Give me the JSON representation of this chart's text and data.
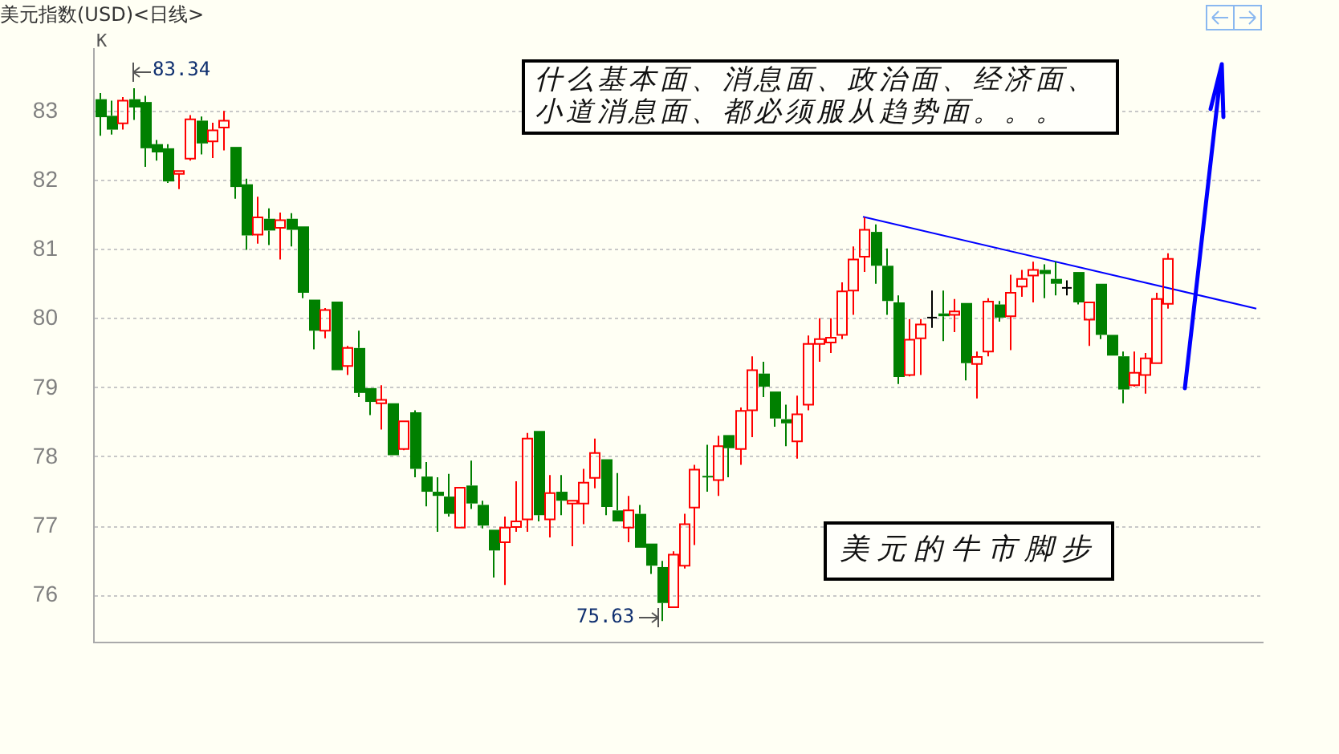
{
  "chart_data": {
    "type": "candlestick",
    "title": "美元指数(USD)<日线>",
    "categories": [
      null,
      null,
      null,
      null,
      null,
      null,
      null,
      null,
      null,
      null,
      null,
      null,
      null,
      null,
      null,
      null,
      null,
      null,
      null,
      null,
      null,
      null,
      null,
      null,
      null,
      null,
      null,
      null,
      null,
      null,
      null,
      null,
      null,
      null,
      null,
      null,
      null,
      null,
      null,
      null,
      null,
      null,
      null,
      null,
      null,
      null,
      null,
      null,
      null,
      null,
      null,
      null,
      null,
      null,
      null,
      null,
      null,
      null,
      null,
      null,
      null,
      null,
      null,
      null,
      null,
      null,
      null,
      null,
      null,
      null,
      null,
      null,
      null,
      null,
      null,
      null,
      null,
      null,
      null,
      null,
      null,
      null,
      null,
      null,
      null,
      null,
      null,
      null,
      null,
      null,
      null,
      null,
      null,
      null,
      null,
      null,
      null,
      null,
      null,
      null,
      null,
      null,
      null,
      null
    ],
    "ohlc": [
      [
        83.18,
        83.27,
        82.65,
        82.92
      ],
      [
        82.94,
        83.16,
        82.67,
        82.74
      ],
      [
        82.83,
        83.21,
        82.74,
        83.16
      ],
      [
        83.18,
        83.34,
        82.88,
        83.06
      ],
      [
        83.14,
        83.23,
        82.2,
        82.47
      ],
      [
        82.53,
        82.59,
        82.29,
        82.41
      ],
      [
        82.47,
        82.53,
        81.97,
        81.99
      ],
      [
        82.1,
        82.14,
        81.88,
        82.14
      ],
      [
        82.32,
        82.95,
        82.29,
        82.89
      ],
      [
        82.87,
        82.93,
        82.38,
        82.54
      ],
      [
        82.57,
        82.84,
        82.33,
        82.73
      ],
      [
        82.77,
        83.01,
        82.44,
        82.87
      ],
      [
        82.49,
        82.49,
        81.74,
        81.91
      ],
      [
        81.95,
        82.03,
        81.0,
        81.21
      ],
      [
        81.22,
        81.77,
        81.09,
        81.47
      ],
      [
        81.45,
        81.6,
        81.07,
        81.28
      ],
      [
        81.32,
        81.54,
        80.86,
        81.43
      ],
      [
        81.45,
        81.53,
        81.05,
        81.29
      ],
      [
        81.34,
        81.34,
        80.3,
        80.38
      ],
      [
        80.28,
        80.28,
        79.56,
        79.83
      ],
      [
        79.83,
        80.16,
        79.72,
        80.13
      ],
      [
        80.25,
        80.25,
        79.26,
        79.26
      ],
      [
        79.32,
        79.61,
        79.19,
        79.58
      ],
      [
        79.58,
        79.83,
        78.87,
        78.93
      ],
      [
        79.0,
        79.0,
        78.61,
        78.8
      ],
      [
        78.78,
        79.04,
        78.4,
        78.83
      ],
      [
        78.78,
        78.78,
        78.03,
        78.03
      ],
      [
        78.12,
        78.52,
        78.1,
        78.52
      ],
      [
        78.65,
        78.68,
        77.71,
        77.83
      ],
      [
        77.72,
        77.93,
        77.29,
        77.5
      ],
      [
        77.5,
        77.71,
        76.92,
        77.44
      ],
      [
        77.43,
        77.76,
        77.14,
        77.18
      ],
      [
        76.98,
        77.56,
        76.98,
        77.56
      ],
      [
        77.59,
        77.95,
        77.25,
        77.33
      ],
      [
        77.31,
        77.37,
        76.97,
        77.01
      ],
      [
        76.95,
        76.95,
        76.26,
        76.65
      ],
      [
        76.77,
        77.14,
        76.15,
        76.98
      ],
      [
        76.99,
        77.65,
        76.92,
        77.07
      ],
      [
        77.1,
        78.35,
        76.92,
        78.27
      ],
      [
        78.38,
        78.38,
        77.07,
        77.16
      ],
      [
        77.1,
        77.74,
        76.84,
        77.48
      ],
      [
        77.5,
        77.74,
        77.16,
        77.37
      ],
      [
        77.33,
        77.37,
        76.71,
        77.37
      ],
      [
        77.33,
        77.83,
        77.03,
        77.63
      ],
      [
        77.7,
        78.27,
        77.55,
        78.06
      ],
      [
        77.97,
        77.97,
        77.16,
        77.28
      ],
      [
        77.23,
        77.77,
        77.07,
        77.07
      ],
      [
        76.98,
        77.44,
        76.77,
        77.23
      ],
      [
        77.18,
        77.31,
        76.69,
        76.69
      ],
      [
        76.75,
        76.75,
        76.31,
        76.43
      ],
      [
        76.41,
        76.5,
        75.63,
        75.89
      ],
      [
        75.83,
        76.64,
        75.83,
        76.59
      ],
      [
        76.43,
        77.18,
        76.39,
        77.03
      ],
      [
        77.27,
        77.89,
        76.73,
        77.82
      ],
      [
        77.73,
        78.18,
        77.5,
        77.71
      ],
      [
        77.67,
        78.31,
        77.44,
        78.16
      ],
      [
        78.32,
        78.32,
        77.71,
        78.13
      ],
      [
        78.12,
        78.72,
        77.89,
        78.67
      ],
      [
        78.68,
        79.46,
        78.29,
        79.26
      ],
      [
        79.21,
        79.38,
        78.87,
        79.02
      ],
      [
        78.95,
        78.95,
        78.44,
        78.56
      ],
      [
        78.55,
        78.76,
        78.16,
        78.49
      ],
      [
        78.23,
        78.89,
        77.98,
        78.62
      ],
      [
        78.76,
        79.76,
        78.68,
        79.64
      ],
      [
        79.64,
        80.01,
        79.38,
        79.71
      ],
      [
        79.66,
        80.01,
        79.51,
        79.73
      ],
      [
        79.77,
        80.53,
        79.71,
        80.4
      ],
      [
        80.41,
        81.05,
        80.06,
        80.86
      ],
      [
        80.9,
        81.47,
        80.68,
        81.29
      ],
      [
        81.26,
        81.37,
        80.51,
        80.77
      ],
      [
        80.77,
        81.02,
        80.06,
        80.26
      ],
      [
        80.24,
        80.34,
        79.06,
        79.16
      ],
      [
        79.19,
        80.0,
        79.17,
        79.7
      ],
      [
        79.72,
        80.0,
        79.19,
        79.92
      ],
      [
        80.02,
        80.41,
        79.87,
        80.02
      ],
      [
        80.08,
        80.41,
        79.68,
        80.04
      ],
      [
        80.06,
        80.29,
        79.81,
        80.11
      ],
      [
        80.23,
        80.23,
        79.11,
        79.36
      ],
      [
        79.35,
        79.53,
        78.85,
        79.45
      ],
      [
        79.53,
        80.3,
        79.46,
        80.25
      ],
      [
        80.21,
        80.26,
        79.96,
        80.02
      ],
      [
        80.04,
        80.64,
        79.55,
        80.38
      ],
      [
        80.47,
        80.71,
        80.32,
        80.58
      ],
      [
        80.63,
        80.83,
        80.24,
        80.71
      ],
      [
        80.71,
        80.79,
        80.3,
        80.65
      ],
      [
        80.58,
        80.83,
        80.34,
        80.51
      ],
      [
        80.45,
        80.56,
        80.34,
        80.45
      ],
      [
        80.68,
        80.68,
        80.21,
        80.24
      ],
      [
        79.99,
        80.24,
        79.61,
        80.24
      ],
      [
        80.51,
        80.51,
        79.71,
        79.77
      ],
      [
        79.77,
        79.77,
        79.47,
        79.47
      ],
      [
        79.46,
        79.53,
        78.78,
        78.98
      ],
      [
        79.04,
        79.53,
        79.02,
        79.22
      ],
      [
        79.19,
        79.51,
        78.92,
        79.43
      ],
      [
        79.36,
        80.38,
        79.36,
        80.29
      ],
      [
        80.22,
        80.95,
        80.15,
        80.87
      ],
      null,
      null,
      null,
      null,
      null,
      null,
      null,
      null
    ],
    "colors": [
      "#008000",
      "#008000",
      "#ff0000",
      "#008000",
      "#008000",
      "#008000",
      "#008000",
      "#ff0000",
      "#ff0000",
      "#008000",
      "#ff0000",
      "#ff0000",
      "#008000",
      "#008000",
      "#ff0000",
      "#008000",
      "#ff0000",
      "#008000",
      "#008000",
      "#008000",
      "#ff0000",
      "#008000",
      "#ff0000",
      "#008000",
      "#008000",
      "#ff0000",
      "#008000",
      "#ff0000",
      "#008000",
      "#008000",
      "#008000",
      "#008000",
      "#ff0000",
      "#008000",
      "#008000",
      "#008000",
      "#ff0000",
      "#ff0000",
      "#ff0000",
      "#008000",
      "#ff0000",
      "#008000",
      "#ff0000",
      "#ff0000",
      "#ff0000",
      "#008000",
      "#008000",
      "#ff0000",
      "#008000",
      "#008000",
      "#008000",
      "#ff0000",
      "#ff0000",
      "#ff0000",
      "#008000",
      "#ff0000",
      "#008000",
      "#ff0000",
      "#ff0000",
      "#008000",
      "#008000",
      "#008000",
      "#ff0000",
      "#ff0000",
      "#ff0000",
      "#ff0000",
      "#ff0000",
      "#ff0000",
      "#ff0000",
      "#008000",
      "#008000",
      "#008000",
      "#ff0000",
      "#ff0000",
      "#000000",
      "#008000",
      "#ff0000",
      "#008000",
      "#ff0000",
      "#ff0000",
      "#008000",
      "#ff0000",
      "#ff0000",
      "#ff0000",
      "#008000",
      "#008000",
      "#000000",
      "#008000",
      "#ff0000",
      "#008000",
      "#008000",
      "#008000",
      "#ff0000",
      "#ff0000",
      "#ff0000",
      "#ff0000",
      null,
      null,
      null,
      null,
      null,
      null,
      null,
      null
    ],
    "series": [
      {
        "type": "line",
        "values": [
          null,
          null,
          null,
          null,
          null,
          null,
          null,
          null,
          null,
          null,
          null,
          null,
          null,
          null,
          null,
          null,
          null,
          null,
          null,
          null,
          null,
          null,
          null,
          null,
          null,
          null,
          null,
          null,
          null,
          null,
          null,
          null,
          null,
          null,
          null,
          null,
          null,
          null,
          null,
          null,
          null,
          null,
          null,
          null,
          null,
          null,
          null,
          null,
          null,
          null,
          null,
          null,
          null,
          null,
          null,
          null,
          null,
          null,
          null,
          null,
          null,
          null,
          null,
          null,
          null,
          null,
          null,
          null,
          81.48,
          null,
          null,
          null,
          null,
          null,
          null,
          null,
          null,
          null,
          null,
          null,
          null,
          null,
          null,
          null,
          null,
          null,
          null,
          null,
          null,
          null,
          null,
          null,
          null,
          null,
          null,
          null,
          null,
          null,
          null,
          null,
          null,
          null,
          null,
          80.15
        ],
        "color": "#0000ff"
      }
    ],
    "ylim": [
      75.33,
      83.91
    ],
    "yticks": [
      76,
      77,
      78,
      79,
      80,
      81,
      82,
      83
    ],
    "tick_labels": "y",
    "grid": "y",
    "annotations": [
      "K",
      "什么基本面、消息面、政治面、经济面、小道消息面、都必须服从趋势面。。。",
      "美元的牛市脚步",
      "83.34",
      "75.63"
    ]
  }
}
